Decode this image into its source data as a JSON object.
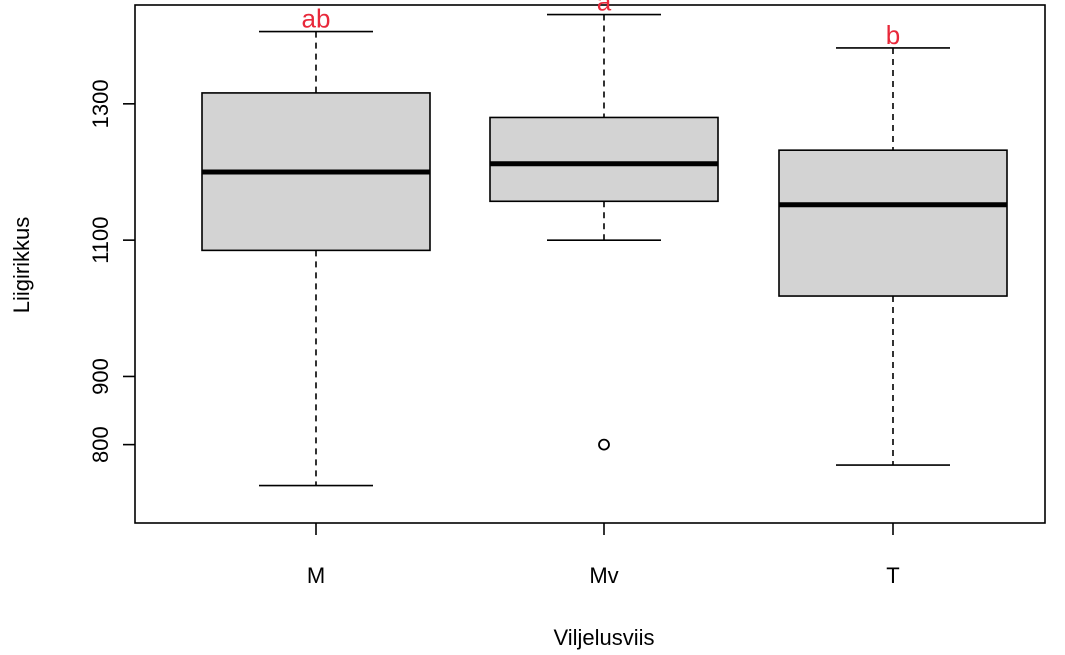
{
  "chart_data": {
    "type": "boxplot",
    "title": "",
    "xlabel": "Viljelusviis",
    "ylabel": "Liigirikkus",
    "ylim": [
      685,
      1445
    ],
    "yticks": [
      800,
      900,
      1100,
      1300
    ],
    "grid": false,
    "legend": "none",
    "categories": [
      "M",
      "Mv",
      "T"
    ],
    "boxes": [
      {
        "category": "M",
        "whisker_low": 740,
        "q1": 1085,
        "median": 1200,
        "q3": 1316,
        "whisker_high": 1406,
        "outliers": [],
        "annotation": "ab"
      },
      {
        "category": "Mv",
        "whisker_low": 1100,
        "q1": 1157,
        "median": 1212,
        "q3": 1280,
        "whisker_high": 1431,
        "outliers": [
          800
        ],
        "annotation": "a"
      },
      {
        "category": "T",
        "whisker_low": 770,
        "q1": 1018,
        "median": 1152,
        "q3": 1232,
        "whisker_high": 1382,
        "outliers": [],
        "annotation": "b"
      }
    ],
    "box_fill": "#d3d3d3",
    "annotation_color": "#e8283a"
  }
}
